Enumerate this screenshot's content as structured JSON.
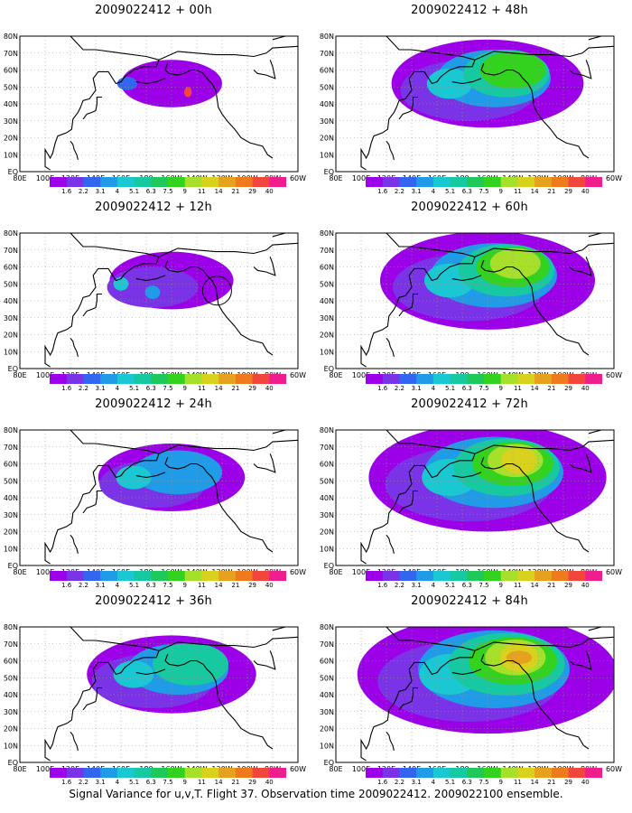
{
  "caption": "Signal Variance for u,v,T. Flight 37. Observation time 2009022412. 2009022100 ensemble.",
  "colorbar": {
    "labels": [
      "1.6",
      "2.2",
      "3.1",
      "4",
      "5.1",
      "6.3",
      "7.5",
      "9",
      "11",
      "14",
      "21",
      "29",
      "40"
    ],
    "colors": [
      "#9b00e8",
      "#7a33e6",
      "#3366ee",
      "#1f9be8",
      "#19c8d2",
      "#17c9a0",
      "#1ec85a",
      "#33d21f",
      "#a6e02a",
      "#d8d21e",
      "#e6a21e",
      "#ef7a1e",
      "#f0463c",
      "#f01e8c"
    ]
  },
  "axes": {
    "lat_labels": [
      "80N",
      "70N",
      "60N",
      "50N",
      "40N",
      "30N",
      "20N",
      "10N",
      "EQ"
    ],
    "lon_labels": [
      "80E",
      "100E",
      "120E",
      "140E",
      "160E",
      "180",
      "160W",
      "140W",
      "120W",
      "100W",
      "80W",
      "60W"
    ]
  },
  "panels": [
    {
      "id": "p00",
      "title": "2009022412 + 00h",
      "level": 0
    },
    {
      "id": "p48",
      "title": "2009022412 + 48h",
      "level": 4
    },
    {
      "id": "p12",
      "title": "2009022412 + 12h",
      "level": 1
    },
    {
      "id": "p60",
      "title": "2009022412 + 60h",
      "level": 5
    },
    {
      "id": "p24",
      "title": "2009022412 + 24h",
      "level": 2
    },
    {
      "id": "p72",
      "title": "2009022412 + 72h",
      "level": 6
    },
    {
      "id": "p36",
      "title": "2009022412 + 36h",
      "level": 3
    },
    {
      "id": "p84",
      "title": "2009022412 + 84h",
      "level": 7
    }
  ]
}
